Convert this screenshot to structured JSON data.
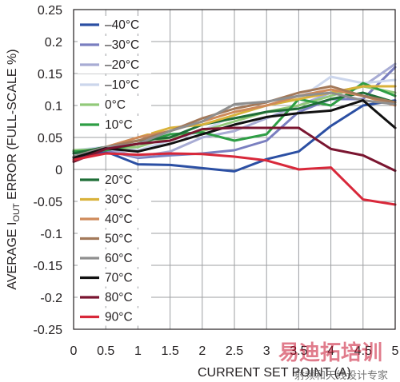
{
  "chart_data": {
    "type": "line",
    "xlabel": "CURRENT SET POINT (A)",
    "ylabel_prefix": "AVERAGE I",
    "ylabel_sub": "OUT",
    "ylabel_suffix": " ERROR (FULL-SCALE %)",
    "xlim": [
      0,
      5
    ],
    "ylim": [
      -0.25,
      0.25
    ],
    "x_ticks": [
      "0",
      "0.5",
      "1",
      "1.5",
      "2",
      "2.5",
      "3",
      "3.5",
      "4",
      "4.5",
      "5"
    ],
    "y_ticks": [
      "0.25",
      "0.2",
      "0.15",
      "0.1",
      "0.05",
      "0",
      "-0.05",
      "-0.1",
      "-0.15",
      "-0.2",
      "-0.25"
    ],
    "grid": true,
    "legend_placement": "left",
    "x": [
      0,
      0.5,
      1,
      1.5,
      2,
      2.5,
      3,
      3.5,
      4,
      4.5,
      5
    ],
    "series": [
      {
        "name": "–40°C",
        "color": "#2b4fa3",
        "values": [
          0.015,
          0.028,
          0.008,
          0.007,
          0.002,
          -0.003,
          0.016,
          0.028,
          0.068,
          0.1,
          0.108
        ]
      },
      {
        "name": "–30°C",
        "color": "#7a7fc0",
        "values": [
          0.025,
          0.03,
          0.018,
          0.022,
          0.025,
          0.03,
          0.045,
          0.09,
          0.11,
          0.11,
          0.16
        ]
      },
      {
        "name": "–20°C",
        "color": "#a8acd4",
        "values": [
          0.028,
          0.033,
          0.02,
          0.028,
          0.05,
          0.06,
          0.08,
          0.1,
          0.12,
          0.13,
          0.165
        ]
      },
      {
        "name": "–10°C",
        "color": "#ccd6ec",
        "values": [
          0.03,
          0.035,
          0.03,
          0.045,
          0.06,
          0.085,
          0.1,
          0.11,
          0.145,
          0.135,
          0.14
        ]
      },
      {
        "name": "0°C",
        "color": "#92c97a",
        "values": [
          0.03,
          0.032,
          0.035,
          0.05,
          0.06,
          0.075,
          0.09,
          0.1,
          0.115,
          0.13,
          0.12
        ]
      },
      {
        "name": "10°C",
        "color": "#2e9e45",
        "values": [
          0.028,
          0.03,
          0.04,
          0.055,
          0.058,
          0.045,
          0.055,
          0.11,
          0.1,
          0.135,
          0.115
        ]
      },
      {
        "name": "20°C",
        "color": "#1f6e37",
        "values": [
          0.025,
          0.035,
          0.045,
          0.05,
          0.07,
          0.08,
          0.09,
          0.095,
          0.11,
          0.12,
          0.105
        ]
      },
      {
        "name": "30°C",
        "color": "#d9b23a",
        "values": [
          0.02,
          0.035,
          0.05,
          0.065,
          0.07,
          0.085,
          0.1,
          0.11,
          0.12,
          0.13,
          0.13
        ]
      },
      {
        "name": "40°C",
        "color": "#cf8a5a",
        "values": [
          0.02,
          0.035,
          0.05,
          0.06,
          0.075,
          0.09,
          0.1,
          0.115,
          0.125,
          0.115,
          0.1
        ]
      },
      {
        "name": "50°C",
        "color": "#a3795a",
        "values": [
          0.02,
          0.035,
          0.045,
          0.06,
          0.08,
          0.095,
          0.105,
          0.12,
          0.13,
          0.115,
          0.105
        ]
      },
      {
        "name": "60°C",
        "color": "#8f8f8f",
        "values": [
          0.02,
          0.035,
          0.04,
          0.06,
          0.075,
          0.102,
          0.106,
          0.115,
          0.12,
          0.108,
          0.102
        ]
      },
      {
        "name": "70°C",
        "color": "#111111",
        "values": [
          0.018,
          0.033,
          0.028,
          0.04,
          0.055,
          0.07,
          0.082,
          0.088,
          0.092,
          0.108,
          0.065
        ]
      },
      {
        "name": "80°C",
        "color": "#7a1530",
        "values": [
          0.012,
          0.032,
          0.04,
          0.045,
          0.063,
          0.065,
          0.065,
          0.065,
          0.032,
          0.022,
          -0.002
        ]
      },
      {
        "name": "90°C",
        "color": "#d8283a",
        "values": [
          0.015,
          0.025,
          0.023,
          0.025,
          0.024,
          0.02,
          0.014,
          0.0,
          0.003,
          -0.047,
          -0.055
        ]
      }
    ]
  },
  "watermark": {
    "main": "易迪拓培训",
    "sub": "射频和天线设计专家"
  }
}
